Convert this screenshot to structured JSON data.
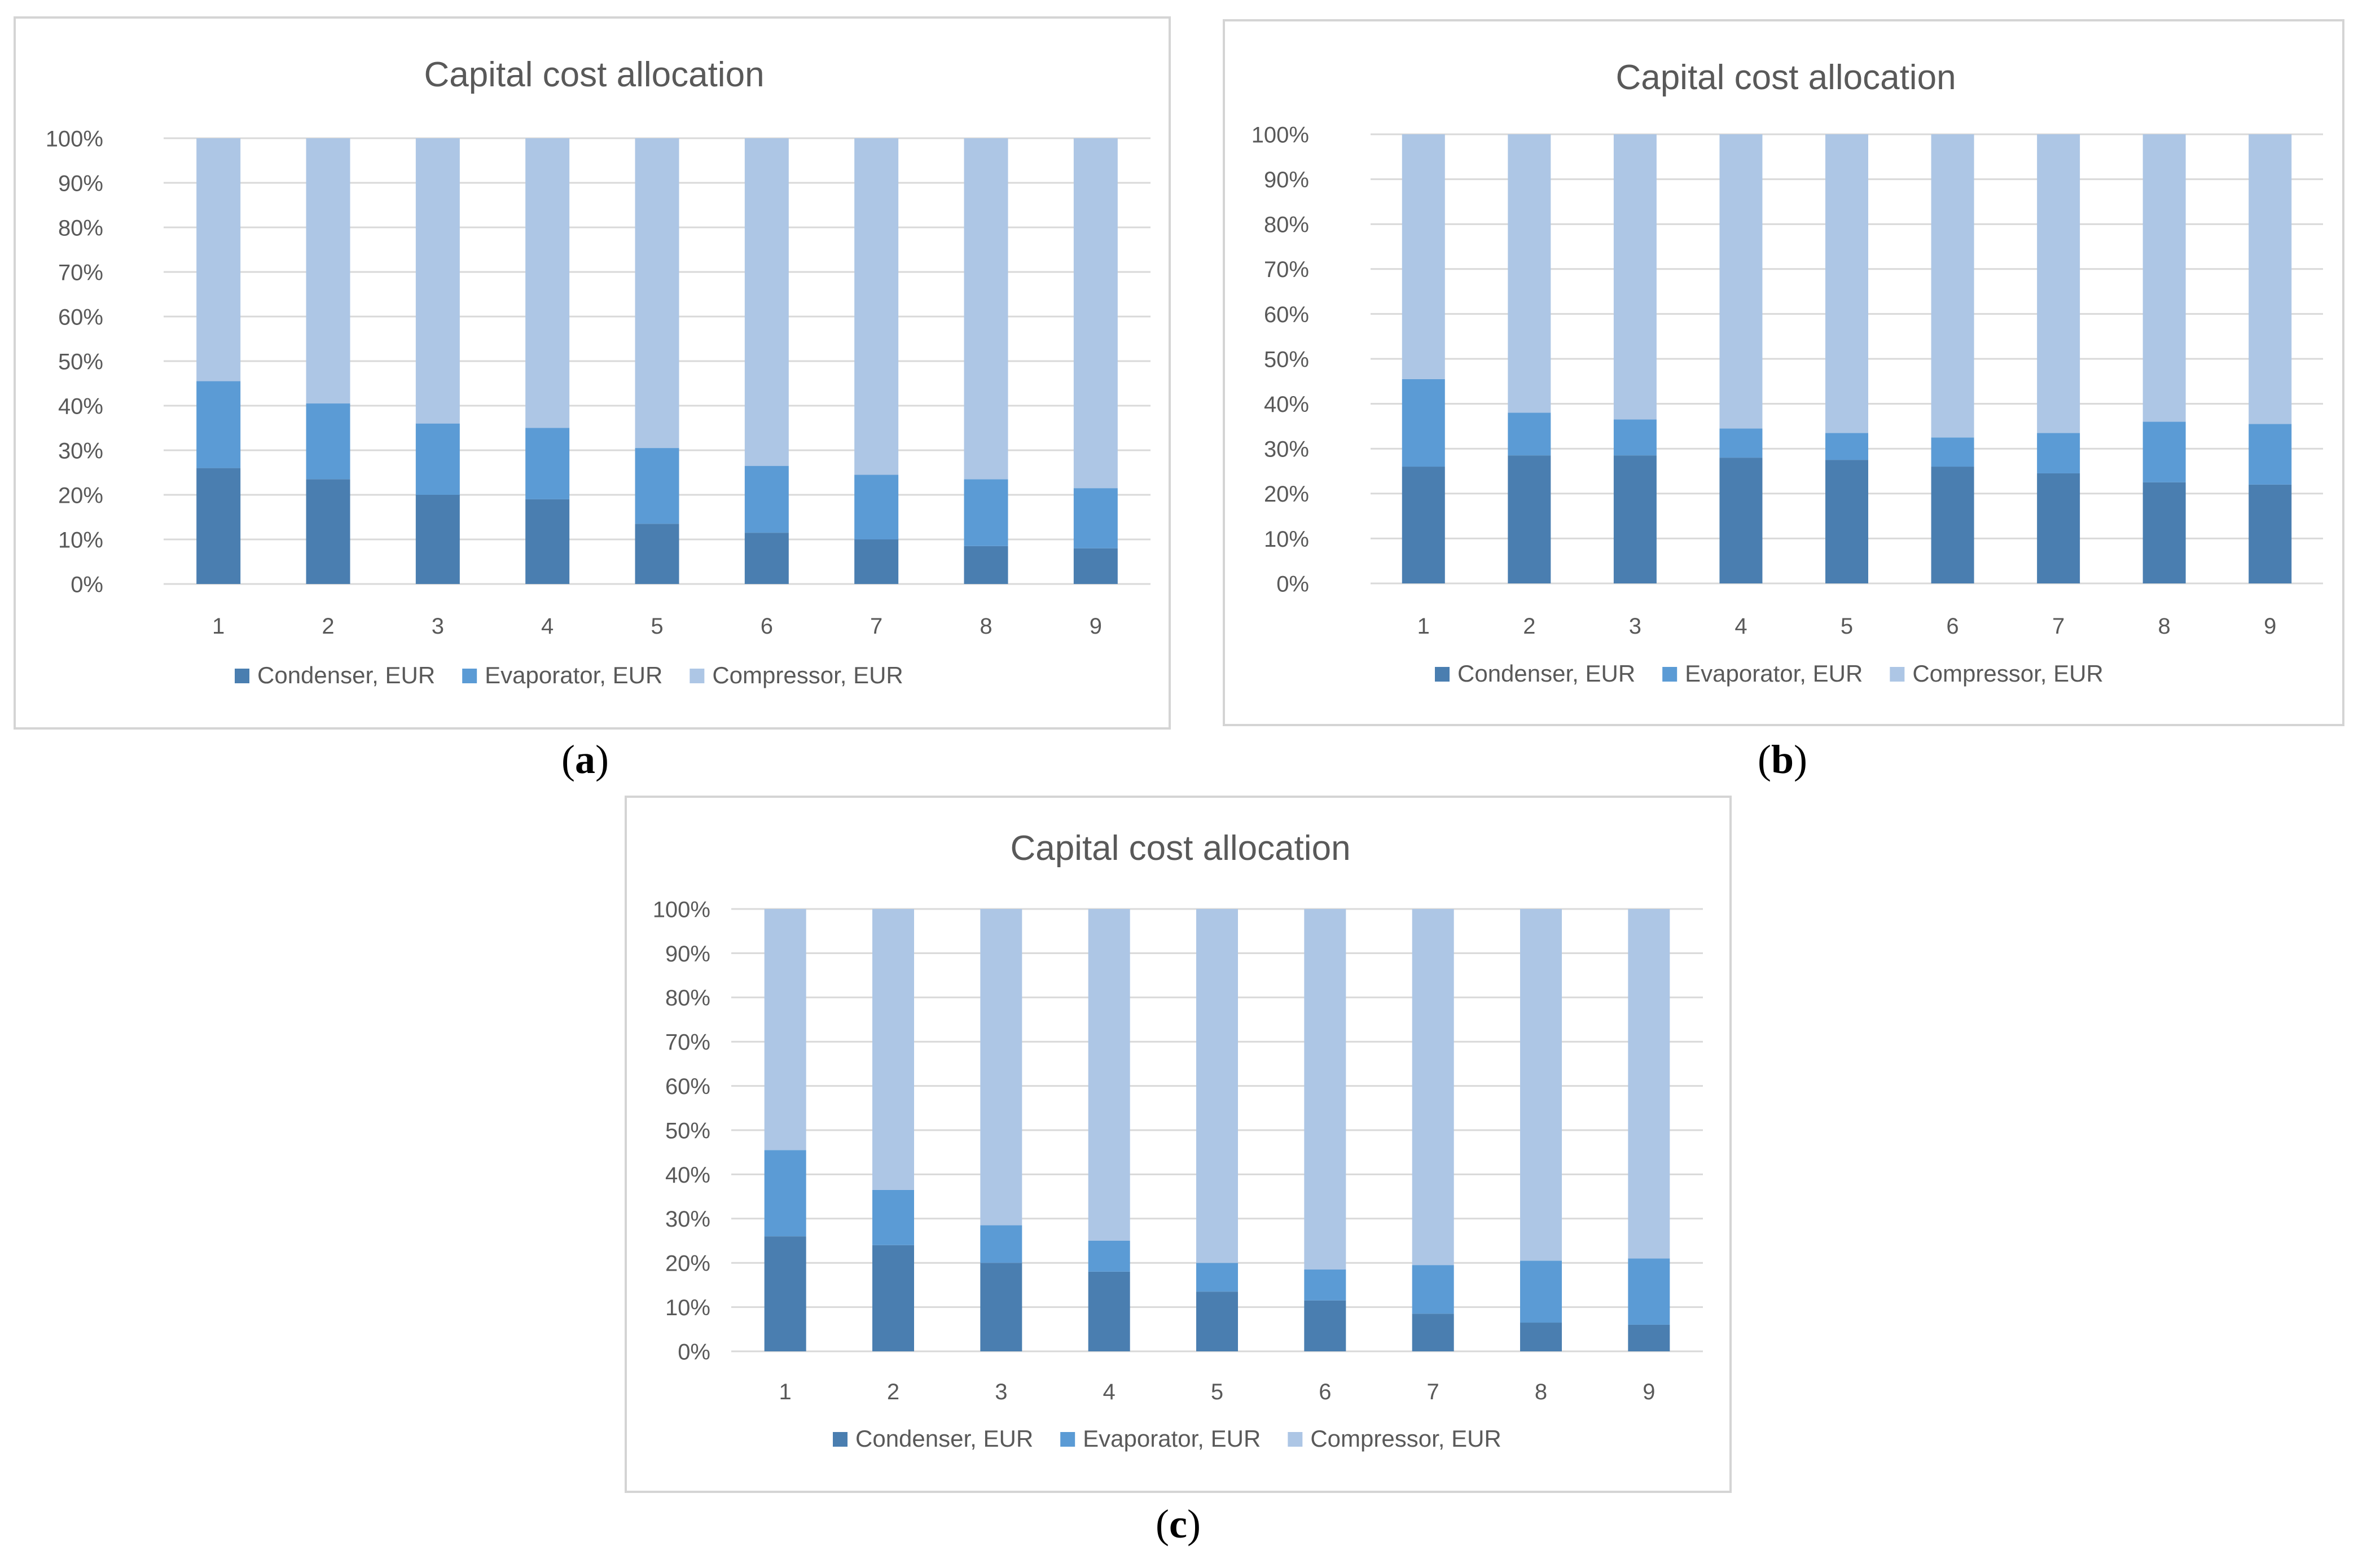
{
  "colors": {
    "condenser": "#4A7EB0",
    "evaporator": "#5B9BD5",
    "compressor": "#ADC6E5",
    "grid": "#d9d9d9",
    "text": "#595959"
  },
  "chart_data": [
    {
      "panel": "a",
      "type": "bar",
      "stacked": true,
      "title": "Capital cost allocation",
      "categories": [
        "1",
        "2",
        "3",
        "4",
        "5",
        "6",
        "7",
        "8",
        "9"
      ],
      "y_ticks": [
        "0%",
        "10%",
        "20%",
        "30%",
        "40%",
        "50%",
        "60%",
        "70%",
        "80%",
        "90%",
        "100%"
      ],
      "ylim": [
        0,
        100
      ],
      "grid": true,
      "legend_position": "bottom",
      "series": [
        {
          "name": "Condenser, EUR",
          "values": [
            26,
            23.5,
            20,
            19,
            13.5,
            11.5,
            10,
            8.5,
            8
          ]
        },
        {
          "name": "Evaporator, EUR",
          "values": [
            19.5,
            17,
            16,
            16,
            17,
            15,
            14.5,
            15,
            13.5
          ]
        },
        {
          "name": "Compressor, EUR",
          "values": [
            54.5,
            59.5,
            64,
            65,
            69.5,
            73.5,
            75.5,
            76.5,
            78.5
          ]
        }
      ]
    },
    {
      "panel": "b",
      "type": "bar",
      "stacked": true,
      "title": "Capital cost allocation",
      "categories": [
        "1",
        "2",
        "3",
        "4",
        "5",
        "6",
        "7",
        "8",
        "9"
      ],
      "y_ticks": [
        "0%",
        "10%",
        "20%",
        "30%",
        "40%",
        "50%",
        "60%",
        "70%",
        "80%",
        "90%",
        "100%"
      ],
      "ylim": [
        0,
        100
      ],
      "grid": true,
      "legend_position": "bottom",
      "series": [
        {
          "name": "Condenser, EUR",
          "values": [
            26,
            28.5,
            28.5,
            28,
            27.5,
            26,
            24.5,
            22.5,
            22
          ]
        },
        {
          "name": "Evaporator, EUR",
          "values": [
            19.5,
            9.5,
            8,
            6.5,
            6,
            6.5,
            9,
            13.5,
            13.5
          ]
        },
        {
          "name": "Compressor, EUR",
          "values": [
            54.5,
            62,
            63.5,
            65.5,
            66.5,
            67.5,
            66.5,
            64,
            64.5
          ]
        }
      ]
    },
    {
      "panel": "c",
      "type": "bar",
      "stacked": true,
      "title": "Capital cost allocation",
      "categories": [
        "1",
        "2",
        "3",
        "4",
        "5",
        "6",
        "7",
        "8",
        "9"
      ],
      "y_ticks": [
        "0%",
        "10%",
        "20%",
        "30%",
        "40%",
        "50%",
        "60%",
        "70%",
        "80%",
        "90%",
        "100%"
      ],
      "ylim": [
        0,
        100
      ],
      "grid": true,
      "legend_position": "bottom",
      "series": [
        {
          "name": "Condenser, EUR",
          "values": [
            26,
            24,
            20,
            18,
            13.5,
            11.5,
            8.5,
            6.5,
            6
          ]
        },
        {
          "name": "Evaporator, EUR",
          "values": [
            19.5,
            12.5,
            8.5,
            7,
            6.5,
            7,
            11,
            14,
            15
          ]
        },
        {
          "name": "Compressor, EUR",
          "values": [
            54.5,
            63.5,
            71.5,
            75,
            80,
            81.5,
            80.5,
            79.5,
            79
          ]
        }
      ]
    }
  ],
  "panel_tags": [
    {
      "open": "(",
      "letter": "a",
      "close": ")"
    },
    {
      "open": "(",
      "letter": "b",
      "close": ")"
    },
    {
      "open": "(",
      "letter": "c",
      "close": ")"
    }
  ]
}
